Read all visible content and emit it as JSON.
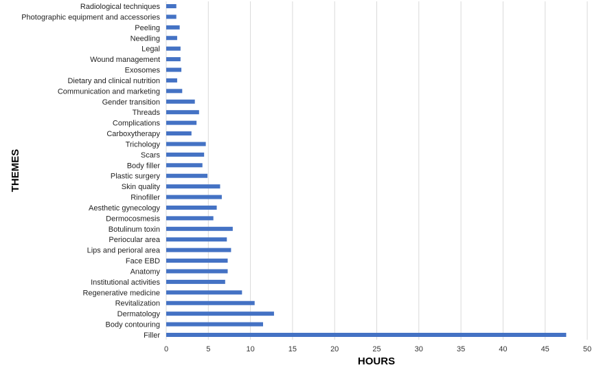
{
  "chart_data": {
    "type": "bar",
    "orientation": "horizontal",
    "xlabel": "HOURS",
    "ylabel": "THEMES",
    "xlim": [
      0,
      50
    ],
    "xticks": [
      0,
      5,
      10,
      15,
      20,
      25,
      30,
      35,
      40,
      45,
      50
    ],
    "grid": true,
    "bar_color": "#4472c4",
    "categories": [
      "Radiological techniques",
      "Photographic equipment and accessories",
      "Peeling",
      "Needling",
      "Legal",
      "Wound management",
      "Exosomes",
      "Dietary and clinical nutrition",
      "Communication and marketing",
      "Gender transition",
      "Threads",
      "Complications",
      "Carboxytherapy",
      "Trichology",
      "Scars",
      "Body filler",
      "Plastic surgery",
      "Skin quality",
      "Rinofiller",
      "Aesthetic gynecology",
      "Dermocosmesis",
      "Botulinum toxin",
      "Periocular area",
      "Lips and perioral area",
      "Face EBD",
      "Anatomy",
      "Institutional activities",
      "Regenerative medicine",
      "Revitalization",
      "Dermatology",
      "Body contouring",
      "Filler"
    ],
    "values": [
      1.2,
      1.2,
      1.6,
      1.3,
      1.7,
      1.7,
      1.8,
      1.3,
      1.9,
      3.4,
      3.9,
      3.6,
      3.0,
      4.7,
      4.5,
      4.3,
      4.9,
      6.4,
      6.6,
      6.0,
      5.6,
      7.9,
      7.2,
      7.7,
      7.3,
      7.3,
      7.0,
      9.0,
      10.5,
      12.8,
      11.5,
      47.5
    ]
  }
}
